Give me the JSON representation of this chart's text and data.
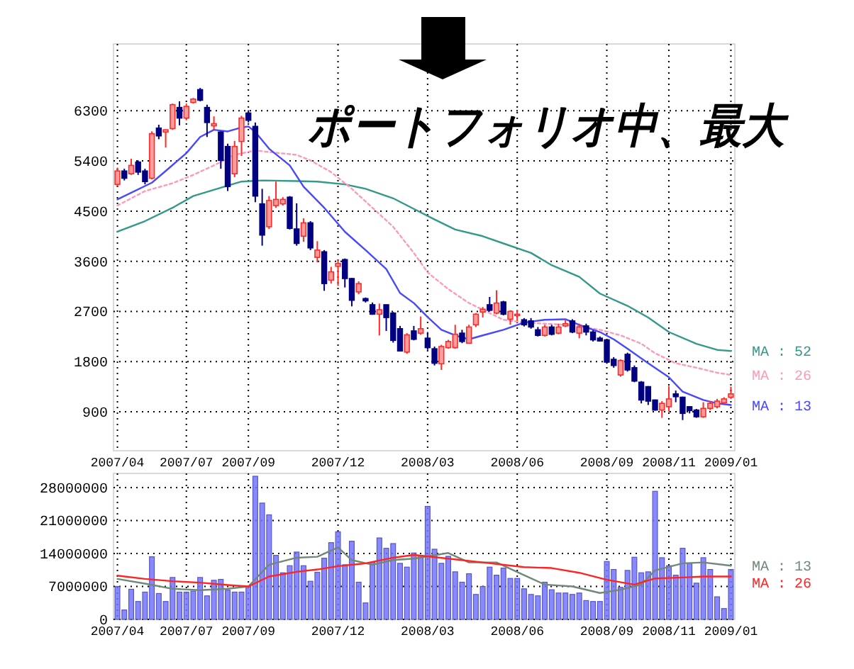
{
  "chart_data": [
    {
      "type": "candlestick",
      "title": "ポートフォリオ中、最大",
      "grid": true,
      "legend": false,
      "xlim": [
        "2007-04-19",
        "2009-01-09"
      ],
      "xticks": [
        {
          "value": "2007-04-23",
          "label": "2007/04"
        },
        {
          "value": "2007-07-02",
          "label": "2007/07"
        },
        {
          "value": "2007-09-03",
          "label": "2007/09"
        },
        {
          "value": "2007-12-03",
          "label": "2007/12"
        },
        {
          "value": "2008-03-03",
          "label": "2008/03"
        },
        {
          "value": "2008-06-02",
          "label": "2008/06"
        },
        {
          "value": "2008-09-01",
          "label": "2008/09"
        },
        {
          "value": "2008-11-03",
          "label": "2008/11"
        },
        {
          "value": "2009-01-05",
          "label": "2009/01"
        }
      ],
      "ylim": [
        200,
        7500
      ],
      "yticks": [
        900,
        1800,
        2700,
        3600,
        4500,
        5400,
        6300
      ],
      "x": [
        "2007-04-23",
        "2007-04-30",
        "2007-05-07",
        "2007-05-14",
        "2007-05-21",
        "2007-05-28",
        "2007-06-04",
        "2007-06-11",
        "2007-06-18",
        "2007-06-25",
        "2007-07-02",
        "2007-07-09",
        "2007-07-16",
        "2007-07-23",
        "2007-07-30",
        "2007-08-06",
        "2007-08-13",
        "2007-08-20",
        "2007-08-27",
        "2007-09-03",
        "2007-09-10",
        "2007-09-17",
        "2007-09-24",
        "2007-10-01",
        "2007-10-08",
        "2007-10-15",
        "2007-10-22",
        "2007-10-29",
        "2007-11-05",
        "2007-11-12",
        "2007-11-19",
        "2007-11-26",
        "2007-12-03",
        "2007-12-10",
        "2007-12-17",
        "2007-12-24",
        "2007-12-31",
        "2008-01-07",
        "2008-01-14",
        "2008-01-21",
        "2008-01-28",
        "2008-02-04",
        "2008-02-11",
        "2008-02-18",
        "2008-02-25",
        "2008-03-03",
        "2008-03-10",
        "2008-03-17",
        "2008-03-24",
        "2008-03-31",
        "2008-04-07",
        "2008-04-14",
        "2008-04-21",
        "2008-04-28",
        "2008-05-05",
        "2008-05-12",
        "2008-05-19",
        "2008-05-26",
        "2008-06-02",
        "2008-06-09",
        "2008-06-16",
        "2008-06-23",
        "2008-06-30",
        "2008-07-07",
        "2008-07-14",
        "2008-07-21",
        "2008-07-28",
        "2008-08-04",
        "2008-08-11",
        "2008-08-18",
        "2008-08-25",
        "2008-09-01",
        "2008-09-08",
        "2008-09-15",
        "2008-09-22",
        "2008-09-29",
        "2008-10-06",
        "2008-10-13",
        "2008-10-20",
        "2008-10-27",
        "2008-11-03",
        "2008-11-10",
        "2008-11-17",
        "2008-11-24",
        "2008-12-01",
        "2008-12-08",
        "2008-12-15",
        "2008-12-22",
        "2008-12-29",
        "2009-01-05"
      ],
      "ohlc": [
        [
          4980,
          5280,
          4940,
          5220
        ],
        [
          5220,
          5260,
          5050,
          5090
        ],
        [
          5170,
          5440,
          5150,
          5320
        ],
        [
          5380,
          5410,
          5150,
          5200
        ],
        [
          5220,
          5260,
          4980,
          5030
        ],
        [
          5090,
          5930,
          5070,
          5890
        ],
        [
          5990,
          6050,
          5790,
          5850
        ],
        [
          5920,
          5960,
          5640,
          5960
        ],
        [
          5980,
          6430,
          5960,
          6410
        ],
        [
          6360,
          6470,
          6040,
          6170
        ],
        [
          6170,
          6430,
          6130,
          6380
        ],
        [
          6450,
          6530,
          6430,
          6510
        ],
        [
          6680,
          6710,
          6470,
          6490
        ],
        [
          6360,
          6410,
          5830,
          6090
        ],
        [
          6030,
          6200,
          5960,
          6070
        ],
        [
          5920,
          5930,
          5260,
          5410
        ],
        [
          5660,
          5710,
          4860,
          4940
        ],
        [
          5170,
          5760,
          5110,
          5660
        ],
        [
          5750,
          6210,
          5490,
          6170
        ],
        [
          6260,
          6310,
          6090,
          6130
        ],
        [
          6020,
          6090,
          4660,
          4770
        ],
        [
          4630,
          4900,
          3880,
          4070
        ],
        [
          4220,
          4770,
          4180,
          4690
        ],
        [
          4600,
          5030,
          4560,
          4710
        ],
        [
          4630,
          4750,
          4600,
          4710
        ],
        [
          4750,
          4770,
          4170,
          4190
        ],
        [
          4180,
          4640,
          3880,
          3920
        ],
        [
          4050,
          4370,
          3950,
          4290
        ],
        [
          4290,
          4320,
          3800,
          3840
        ],
        [
          3670,
          3960,
          3580,
          3800
        ],
        [
          3770,
          3800,
          3070,
          3200
        ],
        [
          3260,
          3500,
          3200,
          3410
        ],
        [
          3510,
          3630,
          3160,
          3560
        ],
        [
          3630,
          3650,
          3130,
          3290
        ],
        [
          3290,
          3300,
          2790,
          2900
        ],
        [
          3050,
          3240,
          3010,
          3200
        ],
        [
          2930,
          2950,
          2860,
          2890
        ],
        [
          2820,
          2860,
          2640,
          2650
        ],
        [
          2650,
          2840,
          2270,
          2730
        ],
        [
          2820,
          2820,
          2350,
          2590
        ],
        [
          2670,
          2690,
          2140,
          2180
        ],
        [
          2390,
          2440,
          1990,
          1990
        ],
        [
          1970,
          2310,
          1940,
          2280
        ],
        [
          2350,
          2440,
          2180,
          2200
        ],
        [
          2310,
          2610,
          2280,
          2390
        ],
        [
          2220,
          2330,
          2010,
          2050
        ],
        [
          2030,
          2070,
          1730,
          1770
        ],
        [
          1760,
          2100,
          1650,
          2070
        ],
        [
          2050,
          2190,
          2030,
          2160
        ],
        [
          2050,
          2460,
          2030,
          2290
        ],
        [
          2310,
          2370,
          2130,
          2160
        ],
        [
          2130,
          2460,
          2120,
          2420
        ],
        [
          2460,
          2670,
          2420,
          2650
        ],
        [
          2690,
          2780,
          2590,
          2740
        ],
        [
          2820,
          2960,
          2700,
          2720
        ],
        [
          2670,
          3080,
          2650,
          2850
        ],
        [
          2870,
          2890,
          2630,
          2650
        ],
        [
          2560,
          2720,
          2460,
          2700
        ],
        [
          2630,
          2730,
          2530,
          2650
        ],
        [
          2550,
          2580,
          2430,
          2460
        ],
        [
          2530,
          2580,
          2390,
          2420
        ],
        [
          2370,
          2420,
          2250,
          2270
        ],
        [
          2270,
          2460,
          2250,
          2420
        ],
        [
          2420,
          2460,
          2270,
          2290
        ],
        [
          2310,
          2480,
          2290,
          2420
        ],
        [
          2440,
          2550,
          2420,
          2480
        ],
        [
          2530,
          2560,
          2310,
          2330
        ],
        [
          2310,
          2480,
          2220,
          2420
        ],
        [
          2440,
          2480,
          2270,
          2330
        ],
        [
          2330,
          2360,
          2160,
          2190
        ],
        [
          2220,
          2250,
          2160,
          2170
        ],
        [
          2190,
          2200,
          1760,
          1790
        ],
        [
          1840,
          1880,
          1690,
          1730
        ],
        [
          1560,
          1840,
          1530,
          1820
        ],
        [
          1930,
          1960,
          1620,
          1650
        ],
        [
          1690,
          1730,
          1430,
          1450
        ],
        [
          1430,
          1450,
          1050,
          1110
        ],
        [
          1350,
          1360,
          1020,
          1090
        ],
        [
          1110,
          1120,
          920,
          930
        ],
        [
          930,
          1090,
          790,
          1050
        ],
        [
          990,
          1360,
          900,
          1130
        ],
        [
          1220,
          1280,
          1070,
          1170
        ],
        [
          1160,
          1170,
          750,
          870
        ],
        [
          990,
          1000,
          870,
          920
        ],
        [
          930,
          950,
          790,
          810
        ],
        [
          810,
          1070,
          790,
          960
        ],
        [
          960,
          1090,
          930,
          1050
        ],
        [
          990,
          1130,
          960,
          1090
        ],
        [
          1060,
          1160,
          1050,
          1130
        ],
        [
          1160,
          1350,
          1130,
          1220
        ]
      ],
      "series": [
        {
          "type": "line",
          "name": "MA : 52",
          "color": "#33998a",
          "line_style": "solid",
          "x": [
            "2007-04-23",
            "2007-05-21",
            "2007-06-18",
            "2007-07-09",
            "2007-08-06",
            "2007-08-27",
            "2007-09-17",
            "2007-10-22",
            "2007-11-12",
            "2007-12-10",
            "2007-12-31",
            "2008-01-28",
            "2008-02-18",
            "2008-03-10",
            "2008-03-31",
            "2008-04-28",
            "2008-05-19",
            "2008-06-16",
            "2008-07-07",
            "2008-08-04",
            "2008-08-25",
            "2008-09-22",
            "2008-10-13",
            "2008-11-03",
            "2008-12-01",
            "2008-12-22",
            "2009-01-05"
          ],
          "values": [
            4130,
            4320,
            4560,
            4770,
            4920,
            5030,
            5050,
            5040,
            5030,
            4980,
            4900,
            4730,
            4540,
            4350,
            4170,
            4050,
            3920,
            3750,
            3530,
            3320,
            3020,
            2800,
            2590,
            2330,
            2120,
            2010,
            1990
          ]
        },
        {
          "type": "line",
          "name": "MA : 26",
          "color": "#ff99bb",
          "line_style": "dotted",
          "x": [
            "2007-04-23",
            "2007-05-21",
            "2007-06-18",
            "2007-07-09",
            "2007-07-30",
            "2007-08-20",
            "2007-09-10",
            "2007-09-24",
            "2007-10-22",
            "2007-11-05",
            "2007-11-26",
            "2007-12-17",
            "2008-01-07",
            "2008-01-28",
            "2008-02-18",
            "2008-03-03",
            "2008-03-24",
            "2008-04-14",
            "2008-05-05",
            "2008-05-19",
            "2008-06-09",
            "2008-06-30",
            "2008-07-21",
            "2008-08-04",
            "2008-08-25",
            "2008-09-15",
            "2008-10-06",
            "2008-10-20",
            "2008-11-10",
            "2008-12-01",
            "2008-12-22",
            "2009-01-05"
          ],
          "values": [
            4600,
            4860,
            5000,
            5150,
            5320,
            5510,
            5590,
            5560,
            5510,
            5410,
            5200,
            4900,
            4560,
            4220,
            3750,
            3400,
            3100,
            2850,
            2670,
            2550,
            2500,
            2480,
            2460,
            2430,
            2370,
            2270,
            2120,
            1950,
            1770,
            1690,
            1600,
            1560
          ]
        },
        {
          "type": "line",
          "name": "MA : 13",
          "color": "#4848ff",
          "line_style": "solid",
          "x": [
            "2007-04-23",
            "2007-05-28",
            "2007-06-11",
            "2007-07-02",
            "2007-07-16",
            "2007-07-30",
            "2007-08-13",
            "2007-08-27",
            "2007-09-03",
            "2007-09-10",
            "2007-09-24",
            "2007-10-15",
            "2007-10-29",
            "2007-11-19",
            "2007-12-10",
            "2007-12-31",
            "2008-01-21",
            "2008-02-04",
            "2008-02-18",
            "2008-03-03",
            "2008-03-17",
            "2008-03-31",
            "2008-04-14",
            "2008-04-28",
            "2008-05-19",
            "2008-06-09",
            "2008-06-30",
            "2008-07-21",
            "2008-08-04",
            "2008-08-25",
            "2008-09-08",
            "2008-09-22",
            "2008-10-13",
            "2008-11-03",
            "2008-11-17",
            "2008-12-08",
            "2008-12-22",
            "2009-01-05"
          ],
          "values": [
            4710,
            5010,
            5220,
            5540,
            5830,
            5960,
            5930,
            6000,
            6020,
            5920,
            5620,
            5320,
            4940,
            4560,
            4130,
            3800,
            3460,
            3030,
            2850,
            2600,
            2370,
            2270,
            2200,
            2270,
            2370,
            2500,
            2550,
            2560,
            2460,
            2330,
            2200,
            2030,
            1770,
            1520,
            1260,
            1110,
            1050,
            1020
          ]
        }
      ]
    },
    {
      "type": "bar",
      "grid": true,
      "legend": false,
      "xlim": [
        "2007-04-19",
        "2009-01-09"
      ],
      "xticks": [
        {
          "value": "2007-04-23",
          "label": "2007/04"
        },
        {
          "value": "2007-07-02",
          "label": "2007/07"
        },
        {
          "value": "2007-09-03",
          "label": "2007/09"
        },
        {
          "value": "2007-12-03",
          "label": "2007/12"
        },
        {
          "value": "2008-03-03",
          "label": "2008/03"
        },
        {
          "value": "2008-06-02",
          "label": "2008/06"
        },
        {
          "value": "2008-09-01",
          "label": "2008/09"
        },
        {
          "value": "2008-11-03",
          "label": "2008/11"
        },
        {
          "value": "2009-01-05",
          "label": "2009/01"
        }
      ],
      "ylim": [
        0,
        31000000
      ],
      "yticks": [
        0,
        7000000,
        14000000,
        21000000,
        28000000
      ],
      "x": [
        "2007-04-23",
        "2007-04-30",
        "2007-05-07",
        "2007-05-14",
        "2007-05-21",
        "2007-05-28",
        "2007-06-04",
        "2007-06-11",
        "2007-06-18",
        "2007-06-25",
        "2007-07-02",
        "2007-07-09",
        "2007-07-16",
        "2007-07-23",
        "2007-07-30",
        "2007-08-06",
        "2007-08-13",
        "2007-08-20",
        "2007-08-27",
        "2007-09-03",
        "2007-09-10",
        "2007-09-17",
        "2007-09-24",
        "2007-10-01",
        "2007-10-08",
        "2007-10-15",
        "2007-10-22",
        "2007-10-29",
        "2007-11-05",
        "2007-11-12",
        "2007-11-19",
        "2007-11-26",
        "2007-12-03",
        "2007-12-10",
        "2007-12-17",
        "2007-12-24",
        "2007-12-31",
        "2008-01-07",
        "2008-01-14",
        "2008-01-21",
        "2008-01-28",
        "2008-02-04",
        "2008-02-11",
        "2008-02-18",
        "2008-02-25",
        "2008-03-03",
        "2008-03-10",
        "2008-03-17",
        "2008-03-24",
        "2008-03-31",
        "2008-04-07",
        "2008-04-14",
        "2008-04-21",
        "2008-04-28",
        "2008-05-05",
        "2008-05-12",
        "2008-05-19",
        "2008-05-26",
        "2008-06-02",
        "2008-06-09",
        "2008-06-16",
        "2008-06-23",
        "2008-06-30",
        "2008-07-07",
        "2008-07-14",
        "2008-07-21",
        "2008-07-28",
        "2008-08-04",
        "2008-08-11",
        "2008-08-18",
        "2008-08-25",
        "2008-09-01",
        "2008-09-08",
        "2008-09-15",
        "2008-09-22",
        "2008-09-29",
        "2008-10-06",
        "2008-10-13",
        "2008-10-20",
        "2008-10-27",
        "2008-11-03",
        "2008-11-10",
        "2008-11-17",
        "2008-11-24",
        "2008-12-01",
        "2008-12-08",
        "2008-12-15",
        "2008-12-22",
        "2008-12-29",
        "2009-01-05"
      ],
      "series": [
        {
          "color": "#7474ff",
          "values": [
            7000000,
            2000000,
            6400000,
            3800000,
            5800000,
            13300000,
            5500000,
            3800000,
            8900000,
            5800000,
            5800000,
            6000000,
            8900000,
            5000000,
            8300000,
            8500000,
            6200000,
            5800000,
            5800000,
            7000000,
            30400000,
            24700000,
            22200000,
            13600000,
            9900000,
            11400000,
            14300000,
            11400000,
            8100000,
            10000000,
            13000000,
            16300000,
            18600000,
            11600000,
            16600000,
            7900000,
            3500000,
            12100000,
            17300000,
            15100000,
            16100000,
            11900000,
            11100000,
            14100000,
            13600000,
            24000000,
            14900000,
            11900000,
            13400000,
            10100000,
            7900000,
            9700000,
            5300000,
            7000000,
            11100000,
            9400000,
            10900000,
            8700000,
            8700000,
            6500000,
            5300000,
            5000000,
            7900000,
            6300000,
            5600000,
            5600000,
            5300000,
            5600000,
            4000000,
            3800000,
            3800000,
            12300000,
            10600000,
            6800000,
            10400000,
            13200000,
            9900000,
            10100000,
            27200000,
            13100000,
            11400000,
            9400000,
            15100000,
            11900000,
            7700000,
            13100000,
            10600000,
            4800000,
            2300000,
            10600000
          ]
        },
        {
          "type": "line",
          "name": "MA : 13",
          "color": "#708878",
          "line_style": "solid",
          "x": [
            "2007-04-23",
            "2007-05-21",
            "2007-06-18",
            "2007-07-16",
            "2007-08-13",
            "2007-09-03",
            "2007-09-24",
            "2007-10-22",
            "2007-11-12",
            "2007-12-03",
            "2007-12-17",
            "2008-01-07",
            "2008-01-28",
            "2008-02-18",
            "2008-03-24",
            "2008-04-14",
            "2008-05-12",
            "2008-06-09",
            "2008-06-30",
            "2008-07-28",
            "2008-08-25",
            "2008-09-15",
            "2008-10-06",
            "2008-10-20",
            "2008-11-17",
            "2008-12-08",
            "2009-01-05"
          ],
          "values": [
            8600000,
            7600000,
            6500000,
            6200000,
            6500000,
            7000000,
            11600000,
            13100000,
            13300000,
            15300000,
            12600000,
            11600000,
            12600000,
            12900000,
            14100000,
            12100000,
            12100000,
            9400000,
            7400000,
            7000000,
            5600000,
            6300000,
            7400000,
            10400000,
            11900000,
            12100000,
            11400000
          ]
        },
        {
          "type": "line",
          "name": "MA : 26",
          "color": "#ff2424",
          "line_style": "solid",
          "x": [
            "2007-04-23",
            "2007-05-21",
            "2007-06-18",
            "2007-07-16",
            "2007-08-13",
            "2007-09-03",
            "2007-09-24",
            "2007-10-22",
            "2007-11-12",
            "2007-12-03",
            "2007-12-31",
            "2008-01-28",
            "2008-02-18",
            "2008-03-24",
            "2008-04-28",
            "2008-06-09",
            "2008-07-07",
            "2008-08-04",
            "2008-09-01",
            "2008-09-29",
            "2008-10-20",
            "2008-11-17",
            "2008-12-08",
            "2009-01-05"
          ],
          "values": [
            9300000,
            8600000,
            8100000,
            7800000,
            7300000,
            7000000,
            9100000,
            10100000,
            10600000,
            11300000,
            11900000,
            13100000,
            13700000,
            12900000,
            12100000,
            11100000,
            10900000,
            9900000,
            8400000,
            7400000,
            8700000,
            8900000,
            9100000,
            9100000
          ]
        }
      ]
    }
  ]
}
